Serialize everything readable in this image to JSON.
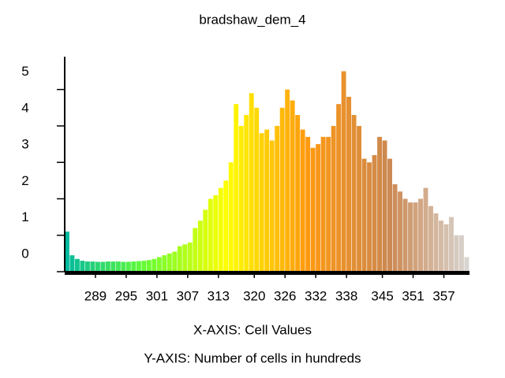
{
  "chart_data": {
    "type": "histogram",
    "title": "bradshaw_dem_4",
    "xlabel": "X-AXIS: Cell Values",
    "ylabel": "Y-AXIS: Number of cells in hundreds",
    "bins": [
      283,
      284,
      285,
      286,
      287,
      288,
      289,
      290,
      291,
      292,
      293,
      294,
      295,
      296,
      297,
      298,
      299,
      300,
      301,
      302,
      303,
      304,
      305,
      306,
      307,
      308,
      309,
      310,
      311,
      312,
      313,
      314,
      315,
      316,
      317,
      318,
      319,
      320,
      321,
      322,
      323,
      324,
      325,
      326,
      327,
      328,
      329,
      330,
      331,
      332,
      333,
      334,
      335,
      336,
      337,
      338,
      339,
      340,
      341,
      342,
      343,
      344,
      345,
      346,
      347,
      348,
      349,
      350,
      351,
      352,
      353,
      354,
      355,
      356,
      357,
      358,
      359,
      360,
      361,
      362
    ],
    "values": [
      1.1,
      0.45,
      0.35,
      0.3,
      0.28,
      0.28,
      0.27,
      0.27,
      0.28,
      0.28,
      0.28,
      0.27,
      0.27,
      0.28,
      0.29,
      0.3,
      0.32,
      0.35,
      0.4,
      0.45,
      0.5,
      0.55,
      0.7,
      0.75,
      0.8,
      1.2,
      1.4,
      1.7,
      2.0,
      2.1,
      2.3,
      2.5,
      3.0,
      4.6,
      4.0,
      4.3,
      4.9,
      4.5,
      3.8,
      3.9,
      3.6,
      4.0,
      4.5,
      5.0,
      4.7,
      4.3,
      3.9,
      3.7,
      3.4,
      3.5,
      3.7,
      3.7,
      4.0,
      4.6,
      5.5,
      4.8,
      4.3,
      4.0,
      3.1,
      3.0,
      3.2,
      3.7,
      3.6,
      3.1,
      2.4,
      2.2,
      2.0,
      1.9,
      1.9,
      2.0,
      2.3,
      1.8,
      1.6,
      1.4,
      1.3,
      1.5,
      1.0,
      1.0,
      0.4
    ],
    "colormap": [
      "#00b8a0",
      "#66ff33",
      "#ffff00",
      "#ff9910",
      "#cc8850",
      "#d8d6d4"
    ],
    "xlim": [
      283,
      362
    ],
    "xticks": [
      289,
      295,
      301,
      307,
      313,
      320,
      326,
      332,
      338,
      345,
      351,
      357
    ],
    "ylim": [
      0,
      5.9
    ],
    "yticks": [
      0,
      1,
      2,
      3,
      4,
      5
    ]
  }
}
